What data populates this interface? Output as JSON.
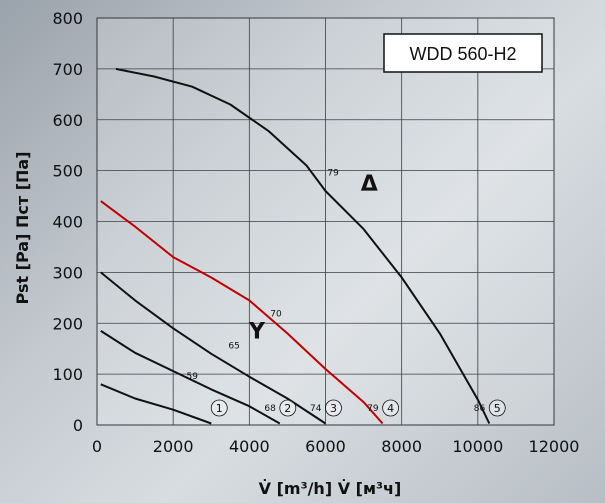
{
  "chart_data": {
    "type": "line",
    "title": "WDD 560-H2",
    "xlabel": "V̇ [m³/h]  V̇ [м³ч]",
    "ylabel": "Pst [Pa]   Пст [Па]",
    "xlim": [
      0,
      12000
    ],
    "ylim": [
      0,
      800
    ],
    "xticks": [
      0,
      2000,
      4000,
      6000,
      8000,
      10000,
      12000
    ],
    "yticks": [
      0,
      100,
      200,
      300,
      400,
      500,
      600,
      700,
      800
    ],
    "grid": true,
    "series": [
      {
        "curve_number": "1",
        "color": "#111111",
        "points": [
          [
            100,
            80
          ],
          [
            1000,
            52
          ],
          [
            2000,
            30
          ],
          [
            3000,
            3
          ]
        ]
      },
      {
        "curve_number": "2",
        "color": "#111111",
        "efficiency_label": "68",
        "points": [
          [
            100,
            185
          ],
          [
            1000,
            142
          ],
          [
            2000,
            106
          ],
          [
            3000,
            70
          ],
          [
            4000,
            37
          ],
          [
            4800,
            3
          ]
        ]
      },
      {
        "curve_number": "3",
        "color": "#111111",
        "efficiency_label": "74",
        "points": [
          [
            100,
            300
          ],
          [
            1000,
            245
          ],
          [
            2000,
            190
          ],
          [
            3000,
            140
          ],
          [
            4000,
            95
          ],
          [
            5000,
            52
          ],
          [
            6000,
            3
          ]
        ]
      },
      {
        "curve_number": "4",
        "color": "#c00000",
        "efficiency_label": "79",
        "points": [
          [
            100,
            440
          ],
          [
            1000,
            390
          ],
          [
            2000,
            330
          ],
          [
            3000,
            290
          ],
          [
            4000,
            245
          ],
          [
            5000,
            180
          ],
          [
            6000,
            110
          ],
          [
            7000,
            45
          ],
          [
            7500,
            3
          ]
        ]
      },
      {
        "curve_number": "5",
        "color": "#111111",
        "efficiency_label": "86",
        "points": [
          [
            500,
            700
          ],
          [
            1500,
            685
          ],
          [
            2500,
            665
          ],
          [
            3500,
            630
          ],
          [
            4500,
            578
          ],
          [
            5500,
            510
          ],
          [
            6000,
            460
          ],
          [
            7000,
            385
          ],
          [
            8000,
            290
          ],
          [
            9000,
            180
          ],
          [
            10000,
            50
          ],
          [
            10300,
            3
          ]
        ]
      }
    ],
    "efficiency_labels": [
      {
        "text": "59",
        "x": 2500,
        "y": 90
      },
      {
        "text": "65",
        "x": 3600,
        "y": 150
      },
      {
        "text": "70",
        "x": 4700,
        "y": 213
      },
      {
        "text": "79",
        "x": 6200,
        "y": 490
      }
    ],
    "connection_symbols": [
      {
        "text": "Δ",
        "x": 7150,
        "y": 460
      },
      {
        "text": "Y",
        "x": 4200,
        "y": 170
      }
    ]
  }
}
